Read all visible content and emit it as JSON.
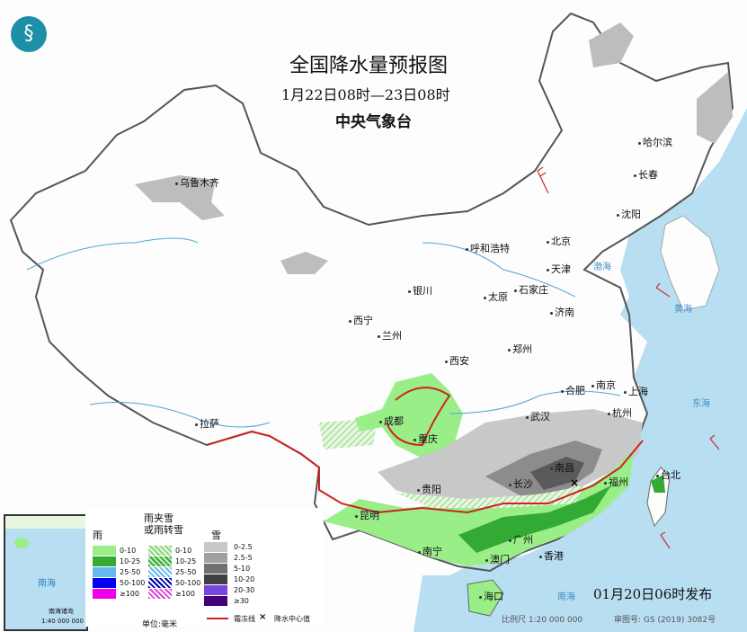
{
  "header": {
    "title": "全国降水量预报图",
    "period": "1月22日08时—23日08时",
    "issuer": "中央气象台"
  },
  "cities": [
    "乌鲁木齐",
    "哈尔滨",
    "长春",
    "沈阳",
    "呼和浩特",
    "北京",
    "天津",
    "石家庄",
    "太原",
    "济南",
    "银川",
    "西宁",
    "兰州",
    "郑州",
    "西安",
    "合肥",
    "南京",
    "上海",
    "武汉",
    "杭州",
    "成都",
    "重庆",
    "长沙",
    "南昌",
    "贵阳",
    "福州",
    "台北",
    "昆明",
    "南宁",
    "广州",
    "香港",
    "澳门",
    "海口",
    "拉萨"
  ],
  "seas": [
    "渤海",
    "黄海",
    "东海",
    "南海"
  ],
  "inset": {
    "label": "南海",
    "island": "南海诸岛",
    "scale": "1:40 000 000"
  },
  "legend": {
    "rain": {
      "title": "雨",
      "items": [
        "0-10",
        "10-25",
        "25-50",
        "50-100",
        "≥100"
      ],
      "colors": [
        "#99ee88",
        "#33aa33",
        "#66b8f0",
        "#0000ee",
        "#ee00ee"
      ]
    },
    "mix": {
      "title": "雨夹雪\n或雨转雪",
      "items": [
        "0-10",
        "10-25",
        "25-50",
        "50-100",
        "≥100"
      ]
    },
    "snow": {
      "title": "雪",
      "items": [
        "0-2.5",
        "2.5-5",
        "5-10",
        "10-20",
        "20-30",
        "≥30"
      ],
      "colors": [
        "#c8c8c8",
        "#a0a0a0",
        "#707070",
        "#404040",
        "#7744dd",
        "#440077"
      ]
    },
    "unit": "单位:毫米",
    "line_label": "霜冻线",
    "center_label": "降水中心值"
  },
  "footer": {
    "release": "01月20日06时发布",
    "scale": "比例尺 1:20 000 000",
    "map_no": "审图号: GS (2019) 3082号"
  }
}
